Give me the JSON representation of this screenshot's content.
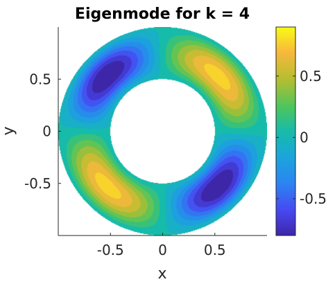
{
  "chart_data": {
    "type": "heatmap",
    "title": "Eigenmode for k = 4",
    "xlabel": "x",
    "ylabel": "y",
    "domain": "annulus",
    "inner_radius": 0.5,
    "outer_radius": 1.0,
    "xlim": [
      -1,
      1
    ],
    "ylim": [
      -1,
      1
    ],
    "xticks": [
      -0.5,
      0,
      0.5
    ],
    "xtick_labels": [
      "-0.5",
      "0",
      "0.5"
    ],
    "yticks": [
      -0.5,
      0,
      0.5
    ],
    "ytick_labels": [
      "-0.5",
      "0",
      "0.5"
    ],
    "colorbar": {
      "colormap": "parula",
      "limits": [
        -0.8,
        0.9
      ],
      "ticks": [
        -0.5,
        0,
        0.5
      ],
      "tick_labels": [
        "-0.5",
        "0",
        "0.5"
      ]
    },
    "extrema": [
      {
        "x": 0.62,
        "y": 0.62,
        "value": 0.88
      },
      {
        "x": -0.62,
        "y": -0.62,
        "value": 0.88
      },
      {
        "x": -0.62,
        "y": 0.62,
        "value": -0.78
      },
      {
        "x": 0.62,
        "y": -0.62,
        "value": -0.78
      }
    ],
    "grid": false
  }
}
